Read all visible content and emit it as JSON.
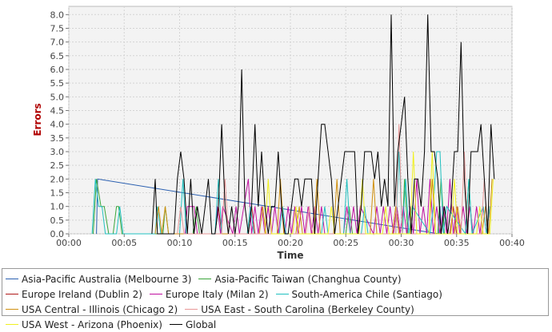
{
  "chart_data": {
    "type": "line",
    "xlabel": "Time",
    "ylabel": "Errors",
    "ylabel_color": "#b00000",
    "x_ticks": [
      "00:00",
      "00:05",
      "00:10",
      "00:15",
      "00:20",
      "00:25",
      "00:30",
      "00:35",
      "00:40"
    ],
    "x_range_minutes": [
      0,
      40
    ],
    "y_ticks": [
      "0.0",
      "0.5",
      "1.0",
      "1.5",
      "2.0",
      "2.5",
      "3.0",
      "3.5",
      "4.0",
      "4.5",
      "5.0",
      "5.5",
      "6.0",
      "6.5",
      "7.0",
      "7.5",
      "8.0"
    ],
    "ylim": [
      0,
      8.3
    ],
    "grid": true,
    "legend_position": "bottom",
    "series": [
      {
        "name": "Asia-Pacific Australia (Melbourne 3)",
        "color": "#2a5fb0",
        "x": [
          2.5,
          2.6,
          33.4,
          33.5,
          33.6
        ],
        "y": [
          0,
          2,
          0,
          1,
          0
        ]
      },
      {
        "name": "Asia-Pacific Taiwan (Changhua County)",
        "color": "#3aa53a",
        "x": [
          2.2,
          2.5,
          2.9,
          3.2,
          3.6,
          4.0,
          4.3,
          4.5,
          4.8,
          8.5,
          8.7,
          9.0,
          11.2,
          11.5,
          11.8,
          25.0,
          25.3,
          25.6,
          30.1,
          30.3,
          30.6,
          33.3,
          33.6,
          33.9,
          35.8,
          36.1,
          36.4
        ],
        "y": [
          0,
          2,
          1,
          1,
          0,
          0,
          1,
          1,
          0,
          0,
          1,
          0,
          0,
          1,
          0,
          0,
          1,
          0,
          0,
          2,
          0,
          0,
          2,
          0,
          0,
          2,
          0
        ]
      },
      {
        "name": "Europe Ireland (Dublin 2)",
        "color": "#b01818",
        "x": [
          13.2,
          13.5,
          13.8,
          16.2,
          16.5,
          16.8,
          29.3,
          29.6,
          29.9,
          34.4,
          34.7,
          35.0
        ],
        "y": [
          0,
          1,
          0,
          0,
          1,
          0,
          0,
          1,
          0,
          0,
          1,
          0
        ]
      },
      {
        "name": "Europe Italy (Milan 2)",
        "color": "#c010a0",
        "x": [
          10.5,
          10.7,
          11.0,
          11.3,
          11.6,
          13.2,
          13.4,
          13.7,
          13.9,
          14.8,
          15.1,
          15.4,
          16.2,
          16.5,
          16.8,
          17.1,
          17.4,
          17.7,
          18.0,
          18.3,
          18.6,
          18.9,
          19.2,
          19.5,
          19.8,
          20.1,
          20.4,
          20.7,
          21.0,
          21.3,
          21.6,
          21.9,
          22.2,
          22.5,
          22.8,
          23.1,
          24.8,
          25.1,
          25.4,
          25.7,
          26.0,
          26.3,
          27.5,
          27.8,
          28.1,
          28.4,
          28.7,
          29.0,
          29.3,
          29.6,
          29.9,
          30.2,
          30.5,
          30.8,
          31.1,
          31.4,
          31.7,
          32.0,
          32.3,
          32.6,
          32.9,
          33.2,
          33.5,
          33.8,
          34.1,
          34.4,
          34.7,
          35.0,
          35.3,
          35.6,
          35.9,
          36.2,
          36.5,
          36.8,
          37.1,
          37.4,
          37.7,
          38.0
        ],
        "y": [
          0,
          1,
          1,
          1,
          0,
          0,
          1,
          0,
          1,
          0,
          1,
          0,
          2,
          0,
          1,
          0,
          1,
          0,
          1,
          0,
          1,
          0,
          1,
          0,
          1,
          0,
          1,
          0,
          1,
          0,
          1,
          0,
          1,
          0,
          1,
          0,
          0,
          1,
          0,
          1,
          0,
          1,
          0,
          1,
          0,
          1,
          0,
          1,
          0,
          1,
          0,
          1,
          0,
          1,
          0,
          2,
          0,
          1,
          0,
          2,
          0,
          1,
          0,
          1,
          0,
          2,
          0,
          1,
          0,
          1,
          0,
          1,
          0,
          1,
          0,
          1,
          0,
          1
        ]
      },
      {
        "name": "South-America Chile (Santiago)",
        "color": "#20c0c0",
        "x": [
          2.1,
          2.4,
          2.7,
          3.0,
          3.3,
          4.3,
          4.6,
          4.9,
          7.8,
          8.0,
          8.3,
          10.0,
          10.3,
          10.6,
          13.2,
          13.5,
          13.8,
          16.1,
          16.4,
          16.7,
          19.0,
          19.3,
          19.6,
          22.8,
          23.1,
          23.4,
          24.8,
          25.1,
          25.4,
          26.4,
          26.7,
          27.0,
          29.5,
          29.8,
          30.1,
          30.4,
          30.7,
          31.0,
          32.6,
          32.9,
          33.2,
          33.5,
          33.8,
          34.1,
          35.8,
          36.1,
          36.4,
          37.4,
          37.7,
          38.0
        ],
        "y": [
          0,
          2,
          1,
          1,
          0,
          0,
          1,
          0,
          0,
          1,
          0,
          0,
          2,
          0,
          0,
          2,
          0,
          0,
          1,
          0,
          0,
          1,
          0,
          0,
          1,
          0,
          0,
          2,
          0,
          0,
          1,
          0,
          0,
          3,
          0,
          2,
          0,
          1,
          0,
          1,
          3,
          3,
          0,
          1,
          0,
          2,
          0,
          1,
          0,
          1
        ]
      },
      {
        "name": "USA Central - Illinois (Chicago 2)",
        "color": "#d09010",
        "x": [
          7.8,
          8.1,
          8.4,
          8.7,
          9.0,
          17.2,
          17.5,
          17.8,
          18.8,
          19.1,
          19.4,
          20.5,
          20.8,
          21.1,
          22.1,
          22.4,
          22.7,
          23.9,
          24.2,
          24.5,
          27.2,
          27.5,
          27.8,
          29.2,
          29.5,
          29.8,
          32.5,
          32.8,
          33.1,
          34.8,
          35.1,
          35.4,
          37.3,
          37.6,
          37.9,
          38.2
        ],
        "y": [
          0,
          1,
          0,
          1,
          0,
          0,
          1,
          0,
          0,
          2,
          0,
          0,
          1,
          0,
          0,
          2,
          0,
          0,
          2,
          0,
          0,
          2,
          0,
          0,
          1,
          0,
          0,
          2,
          0,
          0,
          1,
          0,
          0,
          1,
          0,
          2
        ]
      },
      {
        "name": "USA East - South Carolina (Berkeley County)",
        "color": "#e89898",
        "x": [
          9.8,
          10.1,
          10.4,
          13.8,
          14.1,
          14.4,
          21.4,
          21.7,
          22.0,
          29.5,
          29.8,
          30.1,
          35.4,
          35.7,
          36.0,
          37.2,
          37.5,
          37.8
        ],
        "y": [
          0,
          1,
          0,
          0,
          2,
          0,
          0,
          1,
          0,
          0,
          4,
          0,
          0,
          3,
          0,
          0,
          2,
          0
        ]
      },
      {
        "name": "USA West - Arizona (Phoenix)",
        "color": "#f0f020",
        "x": [
          17.7,
          18.0,
          18.3,
          20.2,
          20.5,
          20.8,
          23.4,
          23.7,
          24.0,
          26.2,
          26.5,
          26.8,
          28.3,
          28.6,
          28.9,
          30.8,
          31.1,
          31.4,
          32.5,
          32.8,
          33.1,
          34.5,
          34.8,
          35.1,
          36.8,
          37.1,
          37.4,
          38.0,
          38.3
        ],
        "y": [
          0,
          2,
          0,
          0,
          1,
          0,
          0,
          1,
          0,
          0,
          2,
          0,
          0,
          1,
          0,
          0,
          3,
          0,
          0,
          3,
          0,
          0,
          2,
          0,
          0,
          1,
          0,
          0,
          2
        ]
      },
      {
        "name": "Global",
        "color": "#000000",
        "x": [
          7.5,
          7.8,
          8.0,
          8.3,
          9.5,
          9.8,
          10.1,
          10.4,
          10.7,
          11.0,
          11.3,
          11.6,
          12.0,
          12.3,
          12.6,
          12.9,
          13.2,
          13.5,
          13.8,
          14.1,
          14.4,
          14.7,
          15.0,
          15.3,
          15.6,
          15.9,
          16.2,
          16.5,
          16.8,
          17.1,
          17.4,
          17.7,
          18.0,
          18.3,
          18.6,
          18.9,
          19.2,
          19.5,
          19.8,
          20.1,
          20.4,
          20.7,
          21.0,
          21.3,
          21.6,
          21.9,
          22.2,
          22.5,
          22.8,
          23.1,
          23.4,
          23.7,
          24.0,
          24.3,
          24.6,
          24.9,
          25.2,
          25.5,
          25.8,
          26.1,
          26.4,
          26.7,
          27.0,
          27.3,
          27.6,
          27.9,
          28.2,
          28.5,
          28.8,
          29.1,
          29.4,
          29.7,
          30.0,
          30.3,
          30.6,
          30.9,
          31.2,
          31.5,
          31.8,
          32.1,
          32.4,
          32.7,
          33.0,
          33.3,
          33.6,
          33.9,
          34.2,
          34.5,
          34.8,
          35.1,
          35.4,
          35.7,
          36.0,
          36.3,
          36.6,
          36.9,
          37.2,
          37.5,
          37.8,
          38.1,
          38.4
        ],
        "y": [
          0,
          2,
          0,
          0,
          0,
          2,
          3,
          2,
          0,
          2,
          0,
          1,
          0,
          1,
          2,
          0,
          0,
          1,
          4,
          1,
          0,
          1,
          0,
          1,
          6,
          1,
          0,
          1,
          4,
          1,
          3,
          1,
          0,
          1,
          1,
          3,
          1,
          0,
          0,
          1,
          2,
          2,
          1,
          2,
          2,
          2,
          0,
          2,
          4,
          4,
          3,
          2,
          0,
          1,
          2,
          3,
          3,
          3,
          3,
          0,
          1,
          3,
          3,
          3,
          2,
          3,
          1,
          2,
          1,
          8,
          1,
          3,
          4,
          5,
          2,
          0,
          2,
          2,
          1,
          3,
          8,
          3,
          3,
          2,
          0,
          1,
          0,
          1,
          3,
          3,
          7,
          2,
          0,
          3,
          3,
          3,
          4,
          2,
          0,
          4,
          2
        ]
      }
    ]
  }
}
